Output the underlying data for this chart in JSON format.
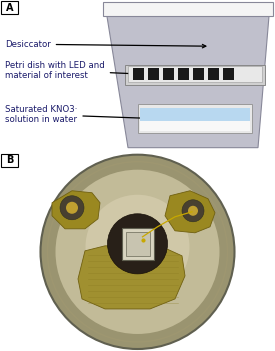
{
  "panel_A_label": "A",
  "panel_B_label": "B",
  "label_desiccator": "Desiccator",
  "label_petri": "Petri dish with LED and\nmaterial of interest",
  "label_saturated": "Saturated KNO3·\nsolution in water",
  "bg_color": "#ffffff",
  "desiccator_body_color": "#c0c0cc",
  "desiccator_border_color": "#888899",
  "petri_dish_color": "#e8e8e8",
  "petri_border_color": "#999999",
  "led_color": "#1a1a1a",
  "solution_fill_color": "#b8d8f0",
  "solution_tray_color": "#e8e8e8",
  "solution_border_color": "#999999",
  "lid_color": "#f5f5f5",
  "lid_border_color": "#888899",
  "arrow_color": "#000000",
  "text_color": "#1a1a6a",
  "text_fontsize": 6.2,
  "panel_label_fontsize": 7,
  "photo_bg_color": "#b5ae8a",
  "photo_inner_color": "#c8c0a0",
  "photo_lead_color": "#a08830",
  "photo_lead_dark": "#786020",
  "photo_center_dark": "#302818",
  "photo_chip_color": "#d8d0b0",
  "photo_chip_border": "#888870"
}
